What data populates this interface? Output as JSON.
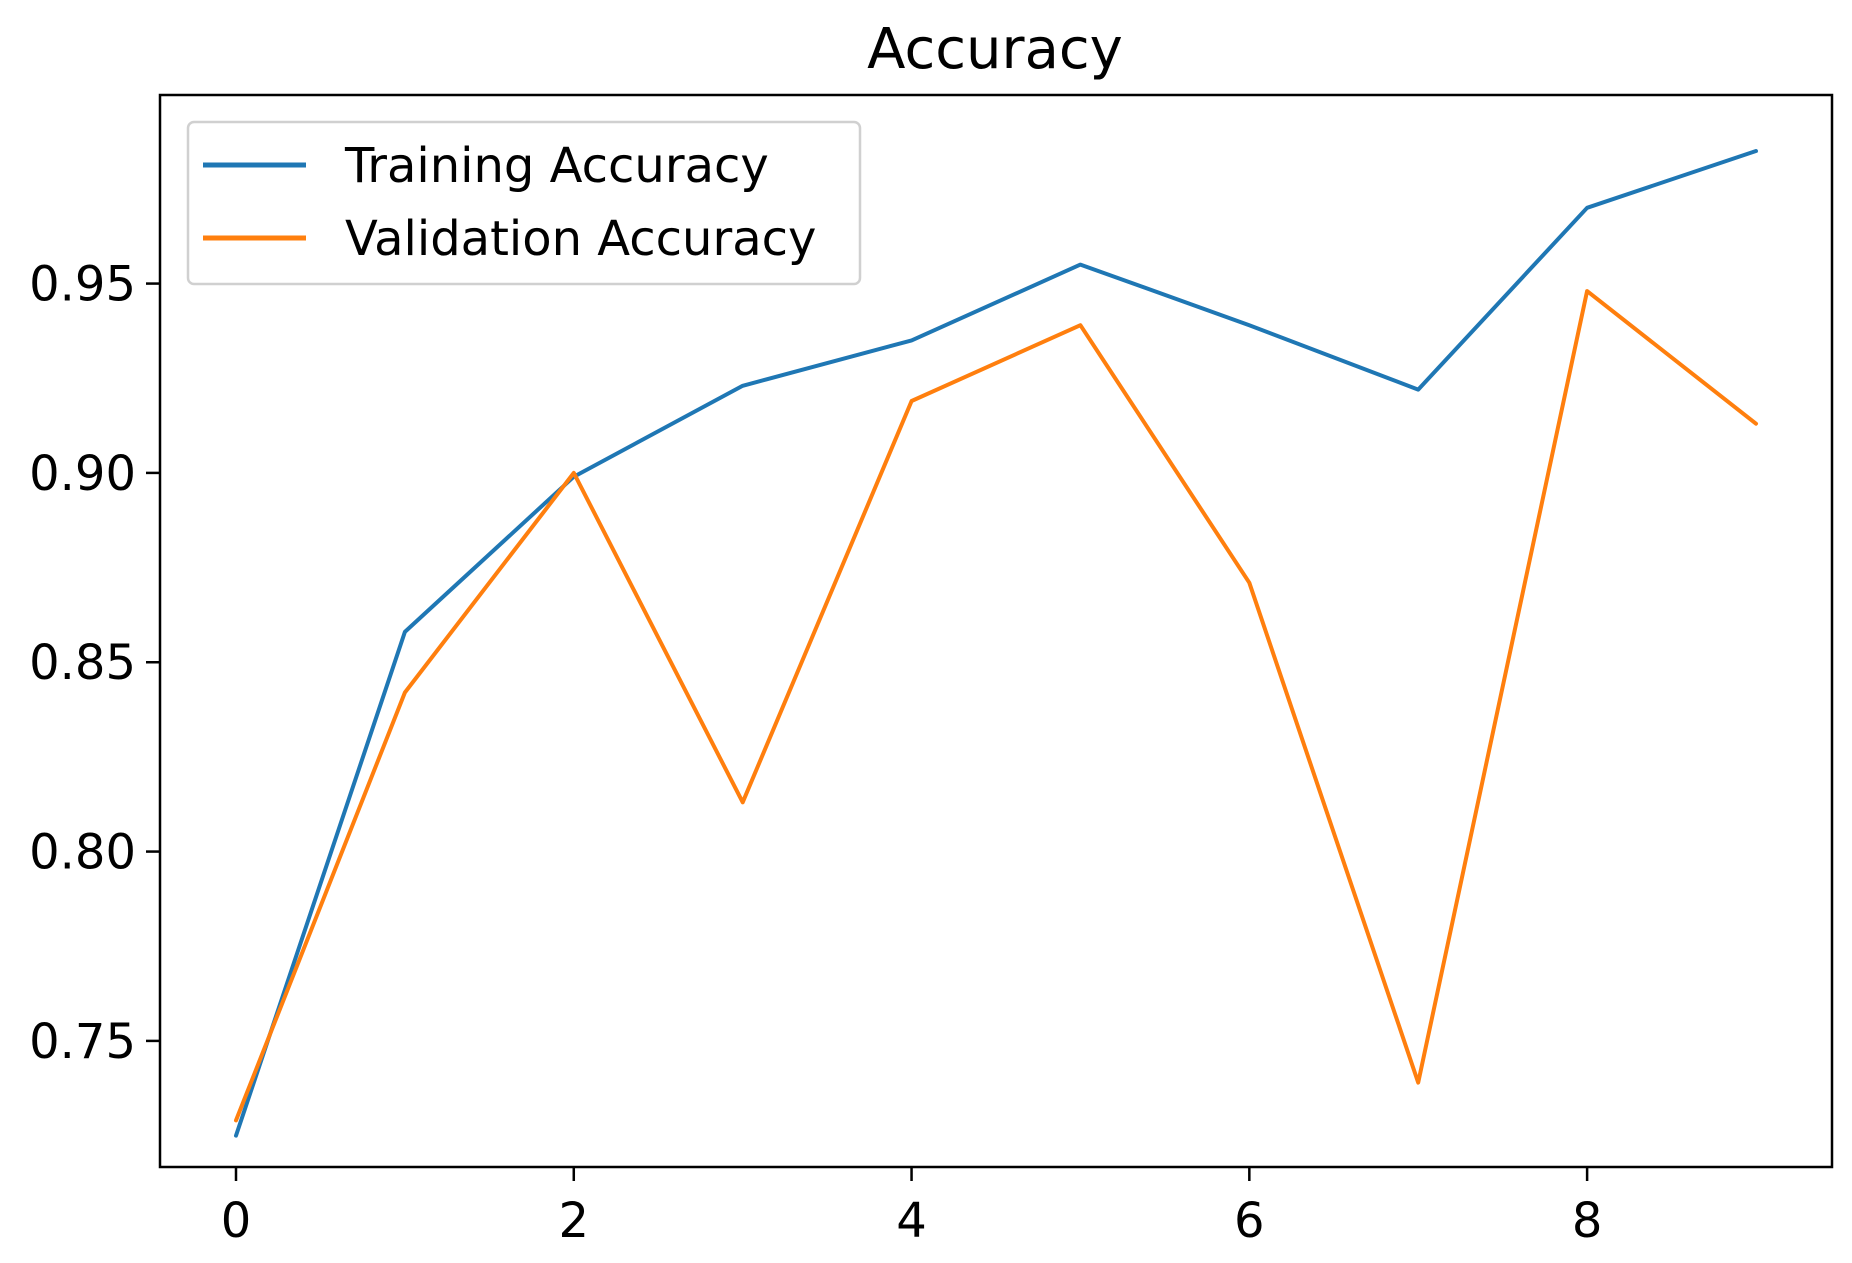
{
  "chart_data": {
    "type": "line",
    "title": "Accuracy",
    "xlabel": "",
    "ylabel": "",
    "x": [
      0,
      1,
      2,
      3,
      4,
      5,
      6,
      7,
      8,
      9
    ],
    "xlim": [
      -0.45,
      9.45
    ],
    "ylim": [
      0.7167,
      0.9998
    ],
    "xticks": [
      0,
      2,
      4,
      6,
      8
    ],
    "xtick_labels": [
      "0",
      "2",
      "4",
      "6",
      "8"
    ],
    "yticks": [
      0.75,
      0.8,
      0.85,
      0.9,
      0.95
    ],
    "ytick_labels": [
      "0.75",
      "0.80",
      "0.85",
      "0.90",
      "0.95"
    ],
    "grid": false,
    "legend_position": "top-left",
    "series": [
      {
        "name": "Training Accuracy",
        "color": "#1f77b4",
        "values": [
          0.725,
          0.858,
          0.899,
          0.923,
          0.935,
          0.955,
          0.939,
          0.922,
          0.97,
          0.985
        ]
      },
      {
        "name": "Validation Accuracy",
        "color": "#ff7f0e",
        "values": [
          0.729,
          0.842,
          0.9,
          0.813,
          0.919,
          0.939,
          0.871,
          0.739,
          0.948,
          0.913
        ]
      }
    ]
  }
}
